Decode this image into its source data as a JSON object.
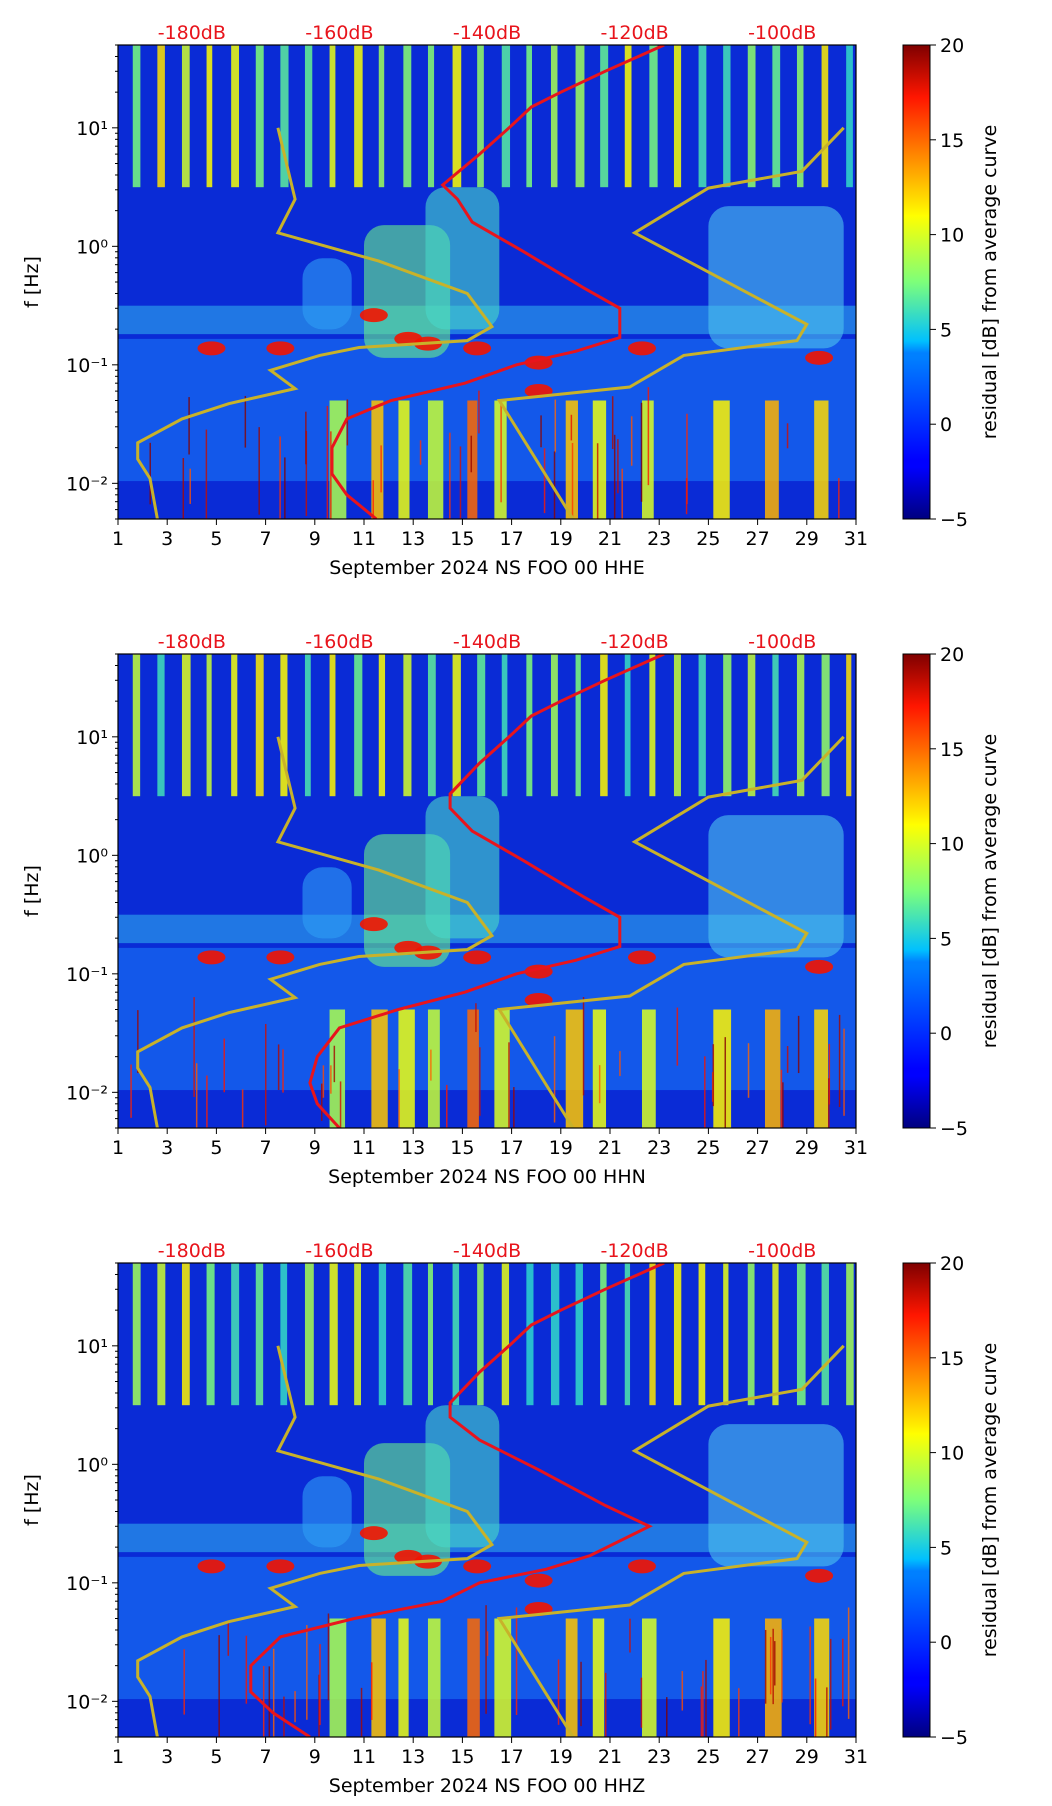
{
  "chart_data": [
    {
      "type": "heatmap",
      "title": "",
      "xlabel": "September 2024 NS FOO 00 HHE",
      "ylabel": "f [Hz]",
      "colorbar_label": "residual [dB] from average curve",
      "x_ticks": [
        "1",
        "3",
        "5",
        "7",
        "9",
        "11",
        "13",
        "15",
        "17",
        "19",
        "21",
        "23",
        "25",
        "27",
        "29",
        "31"
      ],
      "xlim": [
        1,
        31
      ],
      "y_ticks": [
        {
          "value": 0.01,
          "label": "10⁻²"
        },
        {
          "value": 0.1,
          "label": "10⁻¹"
        },
        {
          "value": 1,
          "label": "10⁰"
        },
        {
          "value": 10,
          "label": "10¹"
        }
      ],
      "ylim": [
        0.005,
        50
      ],
      "colorbar_ticks": [
        "−5",
        "0",
        "5",
        "10",
        "15",
        "20"
      ],
      "colorbar_range": [
        -5,
        20
      ],
      "top_db_labels": [
        "-180dB",
        "-160dB",
        "-140dB",
        "-120dB",
        "-100dB"
      ],
      "top_db_values": [
        -180,
        -160,
        -140,
        -120,
        -100
      ],
      "db_axis_range": [
        -190,
        -90
      ],
      "noise_model_curves": {
        "color": "#c8b22a",
        "nlnm_x": [
          2.6,
          2.3,
          1.8,
          1.8,
          3.6,
          5.5,
          8.2,
          7.2,
          9.2,
          10.8,
          15.2,
          16.2,
          15.2,
          11.6,
          7.5,
          8.2,
          7.5
        ],
        "nlnm_f": [
          0.005,
          0.011,
          0.016,
          0.022,
          0.035,
          0.047,
          0.063,
          0.09,
          0.12,
          0.14,
          0.16,
          0.21,
          0.4,
          0.75,
          1.3,
          2.5,
          10
        ],
        "nhnm_x": [
          19.5,
          16.5,
          21.8,
          24,
          28.6,
          29,
          22,
          25,
          28.8,
          30.5
        ],
        "nhnm_f": [
          0.005,
          0.05,
          0.065,
          0.12,
          0.16,
          0.22,
          1.3,
          3.1,
          4.3,
          10
        ]
      },
      "average_psd_curve": {
        "color": "#e8141c",
        "db": [
          -155,
          -159,
          -161,
          -161,
          -159,
          -153,
          -143,
          -136,
          -128,
          -122,
          -122,
          -127,
          -135,
          -142,
          -144,
          -146,
          -141,
          -137,
          -134,
          -130,
          -124,
          -116
        ],
        "f": [
          0.005,
          0.008,
          0.012,
          0.02,
          0.035,
          0.05,
          0.07,
          0.1,
          0.13,
          0.17,
          0.3,
          0.45,
          0.9,
          1.6,
          2.5,
          3.3,
          6,
          10,
          15,
          20,
          30,
          50
        ]
      }
    },
    {
      "type": "heatmap",
      "title": "",
      "xlabel": "September 2024 NS FOO 00 HHN",
      "ylabel": "f [Hz]",
      "colorbar_label": "residual [dB] from average curve",
      "x_ticks": [
        "1",
        "3",
        "5",
        "7",
        "9",
        "11",
        "13",
        "15",
        "17",
        "19",
        "21",
        "23",
        "25",
        "27",
        "29",
        "31"
      ],
      "xlim": [
        1,
        31
      ],
      "y_ticks": [
        {
          "value": 0.01,
          "label": "10⁻²"
        },
        {
          "value": 0.1,
          "label": "10⁻¹"
        },
        {
          "value": 1,
          "label": "10⁰"
        },
        {
          "value": 10,
          "label": "10¹"
        }
      ],
      "ylim": [
        0.005,
        50
      ],
      "colorbar_ticks": [
        "−5",
        "0",
        "5",
        "10",
        "15",
        "20"
      ],
      "colorbar_range": [
        -5,
        20
      ],
      "top_db_labels": [
        "-180dB",
        "-160dB",
        "-140dB",
        "-120dB",
        "-100dB"
      ],
      "top_db_values": [
        -180,
        -160,
        -140,
        -120,
        -100
      ],
      "db_axis_range": [
        -190,
        -90
      ],
      "noise_model_curves": {
        "color": "#c8b22a",
        "nlnm_x": [
          2.6,
          2.3,
          1.8,
          1.8,
          3.6,
          5.5,
          8.2,
          7.2,
          9.2,
          10.8,
          15.2,
          16.2,
          15.2,
          11.6,
          7.5,
          8.2,
          7.5
        ],
        "nlnm_f": [
          0.005,
          0.011,
          0.016,
          0.022,
          0.035,
          0.047,
          0.063,
          0.09,
          0.12,
          0.14,
          0.16,
          0.21,
          0.4,
          0.75,
          1.3,
          2.5,
          10
        ],
        "nhnm_x": [
          19.5,
          16.5,
          21.8,
          24,
          28.6,
          29,
          22,
          25,
          28.8,
          30.5
        ],
        "nhnm_f": [
          0.005,
          0.05,
          0.065,
          0.12,
          0.16,
          0.22,
          1.3,
          3.1,
          4.3,
          10
        ]
      },
      "average_psd_curve": {
        "color": "#e8141c",
        "db": [
          -160,
          -163,
          -164,
          -163,
          -160,
          -152,
          -143,
          -136,
          -128,
          -122,
          -122,
          -127,
          -135,
          -142,
          -145,
          -145,
          -141,
          -137,
          -134,
          -130,
          -124,
          -116
        ],
        "f": [
          0.005,
          0.008,
          0.012,
          0.02,
          0.035,
          0.05,
          0.07,
          0.1,
          0.13,
          0.17,
          0.3,
          0.45,
          0.9,
          1.6,
          2.5,
          3.3,
          6,
          10,
          15,
          20,
          30,
          50
        ]
      }
    },
    {
      "type": "heatmap",
      "title": "",
      "xlabel": "September 2024 NS FOO 00 HHZ",
      "ylabel": "f [Hz]",
      "colorbar_label": "residual [dB] from average curve",
      "x_ticks": [
        "1",
        "3",
        "5",
        "7",
        "9",
        "11",
        "13",
        "15",
        "17",
        "19",
        "21",
        "23",
        "25",
        "27",
        "29",
        "31"
      ],
      "xlim": [
        1,
        31
      ],
      "y_ticks": [
        {
          "value": 0.01,
          "label": "10⁻²"
        },
        {
          "value": 0.1,
          "label": "10⁻¹"
        },
        {
          "value": 1,
          "label": "10⁰"
        },
        {
          "value": 10,
          "label": "10¹"
        }
      ],
      "ylim": [
        0.005,
        50
      ],
      "colorbar_ticks": [
        "−5",
        "0",
        "5",
        "10",
        "15",
        "20"
      ],
      "colorbar_range": [
        -5,
        20
      ],
      "top_db_labels": [
        "-180dB",
        "-160dB",
        "-140dB",
        "-120dB",
        "-100dB"
      ],
      "top_db_values": [
        -180,
        -160,
        -140,
        -120,
        -100
      ],
      "db_axis_range": [
        -190,
        -90
      ],
      "noise_model_curves": {
        "color": "#c8b22a",
        "nlnm_x": [
          2.6,
          2.3,
          1.8,
          1.8,
          3.6,
          5.5,
          8.2,
          7.2,
          9.2,
          10.8,
          15.2,
          16.2,
          15.2,
          11.6,
          7.5,
          8.2,
          7.5
        ],
        "nlnm_f": [
          0.005,
          0.011,
          0.016,
          0.022,
          0.035,
          0.047,
          0.063,
          0.09,
          0.12,
          0.14,
          0.16,
          0.21,
          0.4,
          0.75,
          1.3,
          2.5,
          10
        ],
        "nhnm_x": [
          19.5,
          16.5,
          21.8,
          24,
          28.6,
          29,
          22,
          25,
          28.8,
          30.5
        ],
        "nhnm_f": [
          0.005,
          0.05,
          0.065,
          0.12,
          0.16,
          0.22,
          1.3,
          3.1,
          4.3,
          10
        ]
      },
      "average_psd_curve": {
        "color": "#e8141c",
        "db": [
          -164,
          -169,
          -172,
          -172,
          -168,
          -158,
          -146,
          -141,
          -132,
          -126,
          -118,
          -124,
          -133,
          -141,
          -145,
          -145,
          -141,
          -137,
          -134,
          -130,
          -124,
          -116
        ],
        "f": [
          0.005,
          0.008,
          0.012,
          0.02,
          0.035,
          0.05,
          0.07,
          0.1,
          0.13,
          0.17,
          0.3,
          0.45,
          0.9,
          1.6,
          2.5,
          3.3,
          6,
          10,
          15,
          20,
          30,
          50
        ]
      }
    }
  ]
}
